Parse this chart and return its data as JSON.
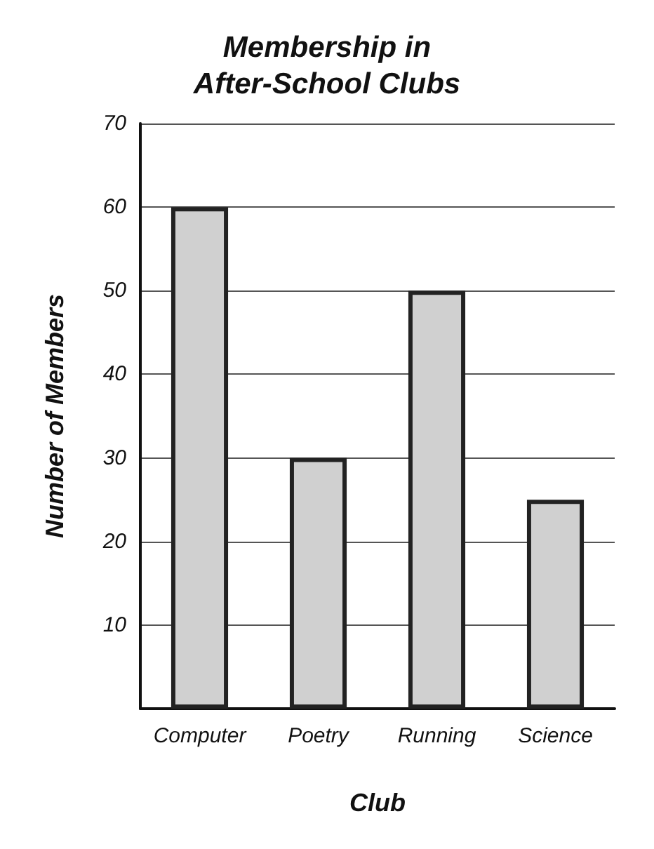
{
  "chart_data": {
    "type": "bar",
    "title": "Membership in\nAfter-School Clubs",
    "xlabel": "Club",
    "ylabel": "Number of Members",
    "categories": [
      "Computer",
      "Poetry",
      "Running",
      "Science"
    ],
    "values": [
      60,
      30,
      50,
      25
    ],
    "color": "#d0d0d0",
    "ylim": [
      0,
      70
    ],
    "yticks": [
      10,
      20,
      30,
      40,
      50,
      60,
      70
    ],
    "grid": "y"
  }
}
